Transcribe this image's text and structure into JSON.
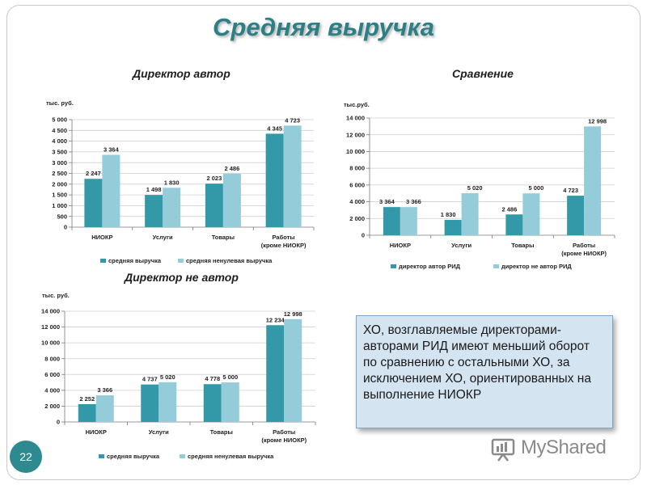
{
  "slide": {
    "title": "Средняя выручка",
    "page_number": "22",
    "text_box": "ХО, возглавляемые директорами-авторами РИД имеют меньший оборот по сравнению с остальными ХО, за исключением ХО, ориентированных на выполнение НИОКР",
    "watermark": "MyShared",
    "colors": {
      "dark": "#3399a8",
      "light": "#95ccd9",
      "title": "#2d7f86"
    }
  },
  "chart_data": [
    {
      "type": "bar",
      "title": "Директор автор",
      "unit_label": "тыс. руб.",
      "categories": [
        "НИОКР",
        "Услуги",
        "Товары",
        "Работы (кроме НИОКР)"
      ],
      "category_lines": [
        [
          "НИОКР"
        ],
        [
          "Услуги"
        ],
        [
          "Товары"
        ],
        [
          "Работы",
          "(кроме НИОКР)"
        ]
      ],
      "series": [
        {
          "name": "средняя выручка",
          "values": [
            2247,
            1498,
            2023,
            4345
          ],
          "labels": [
            "2 247",
            "1 498",
            "2 023",
            "4 345"
          ]
        },
        {
          "name": "средняя ненулевая выручка",
          "values": [
            3364,
            1830,
            2486,
            4723
          ],
          "labels": [
            "3 364",
            "1 830",
            "2 486",
            "4 723"
          ]
        }
      ],
      "ylim": [
        0,
        5000
      ],
      "yticks": [
        "0",
        "500",
        "1 000",
        "1 500",
        "2 000",
        "2 500",
        "3 000",
        "3 500",
        "4 000",
        "4 500",
        "5 000"
      ],
      "grid": true,
      "legend": "bottom"
    },
    {
      "type": "bar",
      "title": "Сравнение",
      "unit_label": "тыс.руб.",
      "categories": [
        "НИОКР",
        "Услуги",
        "Товары",
        "Работы (кроме НИОКР)"
      ],
      "category_lines": [
        [
          "НИОКР"
        ],
        [
          "Услуги"
        ],
        [
          "Товары"
        ],
        [
          "Работы",
          "(кроме НИОКР)"
        ]
      ],
      "series": [
        {
          "name": "директор автор РИД",
          "values": [
            3364,
            1830,
            2486,
            4723
          ],
          "labels": [
            "3 364",
            "1 830",
            "2 486",
            "4 723"
          ]
        },
        {
          "name": "директор не автор РИД",
          "values": [
            3366,
            5020,
            5000,
            12998
          ],
          "labels": [
            "3 366",
            "5 020",
            "5 000",
            "12 998"
          ]
        }
      ],
      "ylim": [
        0,
        14000
      ],
      "yticks": [
        "0",
        "2 000",
        "4 000",
        "6 000",
        "8 000",
        "10 000",
        "12 000",
        "14 000"
      ],
      "grid": true,
      "legend": "bottom"
    },
    {
      "type": "bar",
      "title": "Директор не автор",
      "unit_label": "тыс. руб.",
      "categories": [
        "НИОКР",
        "Услуги",
        "Товары",
        "Работы (кроме НИОКР)"
      ],
      "category_lines": [
        [
          "НИОКР"
        ],
        [
          "Услуги"
        ],
        [
          "Товары"
        ],
        [
          "Работы",
          "(кроме НИОКР)"
        ]
      ],
      "series": [
        {
          "name": "средняя выручка",
          "values": [
            2252,
            4737,
            4778,
            12234
          ],
          "labels": [
            "2 252",
            "4 737",
            "4 778",
            "12 234"
          ]
        },
        {
          "name": "средняя ненулевая выручка",
          "values": [
            3366,
            5020,
            5000,
            12998
          ],
          "labels": [
            "3 366",
            "5 020",
            "5 000",
            "12 998"
          ]
        }
      ],
      "ylim": [
        0,
        14000
      ],
      "yticks": [
        "0",
        "2 000",
        "4 000",
        "6 000",
        "8 000",
        "10 000",
        "12 000",
        "14 000"
      ],
      "grid": true,
      "legend": "bottom"
    }
  ]
}
